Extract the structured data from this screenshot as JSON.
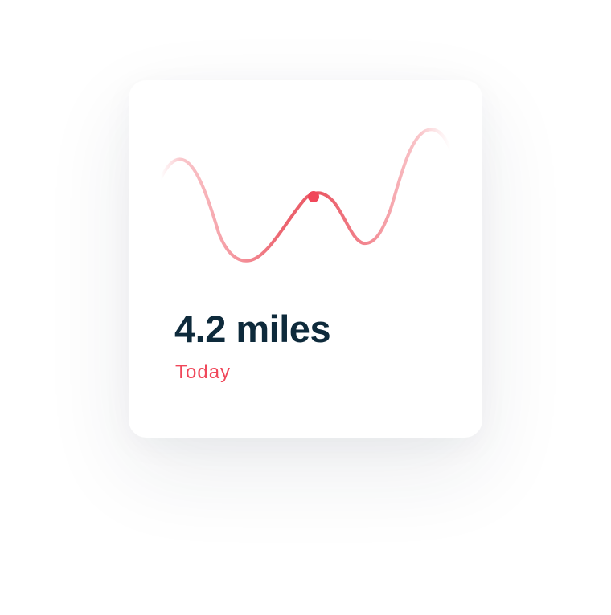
{
  "card": {
    "metric_text": "4.2 miles",
    "period_label": "Today"
  },
  "colors": {
    "metric_text": "#0e2a3b",
    "accent": "#f0475a",
    "wave_light": "#f59aa2",
    "wave_dark": "#ea5a66",
    "background": "#ffffff"
  }
}
